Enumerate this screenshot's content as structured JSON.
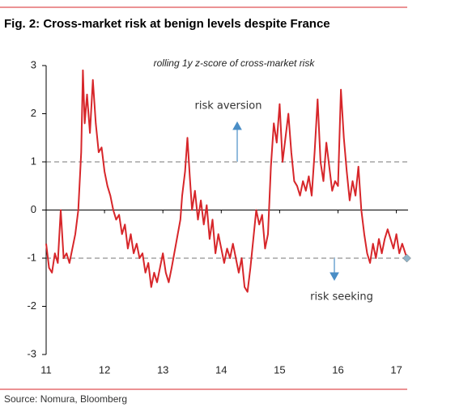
{
  "chart_data": {
    "type": "line",
    "title": "Fig. 2: Cross-market risk at benign levels despite France",
    "subtitle": "rolling 1y z-score of cross-market risk",
    "annotations": [
      "risk aversion",
      "risk seeking"
    ],
    "source": "Source: Nomura, Bloomberg",
    "xlim": [
      11,
      17.2
    ],
    "xticks": [
      11,
      12,
      13,
      14,
      15,
      16,
      17
    ],
    "ylim": [
      -3,
      3
    ],
    "yticks": [
      -3,
      -2,
      -1,
      0,
      1,
      2,
      3
    ],
    "hlines": [
      1,
      -1
    ],
    "hline_color": "#bbbbbb",
    "marker_color": "#8fb4c8",
    "series": [
      {
        "color": "#d7262a",
        "x": [
          11.0,
          11.05,
          11.1,
          11.15,
          11.2,
          11.25,
          11.3,
          11.35,
          11.4,
          11.45,
          11.5,
          11.55,
          11.6,
          11.63,
          11.66,
          11.7,
          11.75,
          11.8,
          11.85,
          11.9,
          11.95,
          12.0,
          12.05,
          12.1,
          12.15,
          12.2,
          12.25,
          12.3,
          12.35,
          12.4,
          12.45,
          12.5,
          12.55,
          12.6,
          12.65,
          12.7,
          12.75,
          12.8,
          12.85,
          12.9,
          12.95,
          13.0,
          13.05,
          13.1,
          13.15,
          13.3,
          13.33,
          13.38,
          13.42,
          13.46,
          13.5,
          13.55,
          13.6,
          13.65,
          13.7,
          13.75,
          13.8,
          13.85,
          13.9,
          13.95,
          14.0,
          14.05,
          14.1,
          14.15,
          14.2,
          14.3,
          14.35,
          14.4,
          14.45,
          14.5,
          14.55,
          14.6,
          14.65,
          14.7,
          14.75,
          14.8,
          14.85,
          14.9,
          14.95,
          15.0,
          15.05,
          15.1,
          15.15,
          15.2,
          15.25,
          15.3,
          15.35,
          15.4,
          15.45,
          15.5,
          15.55,
          15.6,
          15.65,
          15.7,
          15.75,
          15.8,
          15.85,
          15.9,
          15.95,
          16.0,
          16.05,
          16.1,
          16.15,
          16.2,
          16.25,
          16.3,
          16.35,
          16.4,
          16.45,
          16.5,
          16.55,
          16.6,
          16.65,
          16.7,
          16.75,
          16.8,
          16.85,
          16.9,
          16.95,
          17.0,
          17.05,
          17.1,
          17.18
        ],
        "values": [
          -0.7,
          -1.2,
          -1.3,
          -0.9,
          -1.1,
          0.0,
          -1.0,
          -0.9,
          -1.1,
          -0.8,
          -0.5,
          0.0,
          1.2,
          2.9,
          1.8,
          2.4,
          1.6,
          2.7,
          1.8,
          1.2,
          1.3,
          0.8,
          0.5,
          0.3,
          0.0,
          -0.2,
          -0.1,
          -0.5,
          -0.3,
          -0.8,
          -0.5,
          -0.9,
          -0.7,
          -1.0,
          -0.9,
          -1.3,
          -1.1,
          -1.6,
          -1.3,
          -1.5,
          -1.2,
          -0.9,
          -1.3,
          -1.5,
          -1.2,
          -0.2,
          0.3,
          0.8,
          1.5,
          0.7,
          0.0,
          0.4,
          -0.2,
          0.2,
          -0.3,
          0.1,
          -0.6,
          -0.2,
          -0.9,
          -0.5,
          -0.8,
          -1.1,
          -0.8,
          -1.0,
          -0.7,
          -1.3,
          -1.0,
          -1.6,
          -1.7,
          -1.2,
          -0.6,
          0.0,
          -0.3,
          -0.1,
          -0.8,
          -0.5,
          0.9,
          1.8,
          1.4,
          2.2,
          1.0,
          1.5,
          2.0,
          1.2,
          0.6,
          0.5,
          0.3,
          0.6,
          0.4,
          0.7,
          0.3,
          1.2,
          2.3,
          1.0,
          0.6,
          1.4,
          0.9,
          0.4,
          0.6,
          0.5,
          2.5,
          1.5,
          0.8,
          0.2,
          0.6,
          0.3,
          0.9,
          0.0,
          -0.5,
          -0.9,
          -1.1,
          -0.7,
          -1.0,
          -0.6,
          -0.9,
          -0.6,
          -0.4,
          -0.6,
          -0.8,
          -0.5,
          -0.9,
          -0.7,
          -1.0
        ]
      }
    ]
  }
}
